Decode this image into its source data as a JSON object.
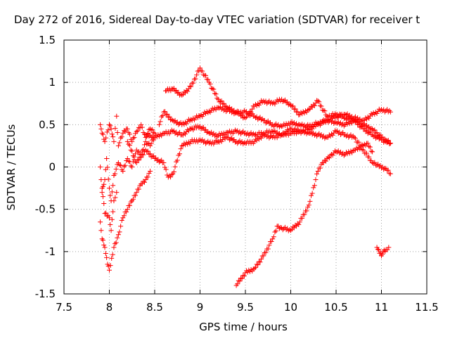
{
  "chart_data": {
    "type": "scatter",
    "title": "Day 272 of 2016, Sidereal Day-to-day VTEC variation (SDTVAR) for receiver t",
    "xlabel": "GPS time / hours",
    "ylabel": "SDTVAR / TECUs",
    "xlim": [
      7.5,
      11.5
    ],
    "ylim": [
      -1.5,
      1.5
    ],
    "x_ticks": [
      7.5,
      8,
      8.5,
      9,
      9.5,
      10,
      10.5,
      11,
      11.5
    ],
    "x_tick_labels": [
      "7.5",
      "8",
      "8.5",
      "9",
      "9.5",
      "10",
      "10.5",
      "11",
      "11.5"
    ],
    "y_ticks": [
      -1.5,
      -1,
      -0.5,
      0,
      0.5,
      1,
      1.5
    ],
    "y_tick_labels": [
      "-1.5",
      "-1",
      "-0.5",
      "0",
      "0.5",
      "1",
      "1.5"
    ],
    "grid": true,
    "marker": "+",
    "color": "#ff0000",
    "series": [
      {
        "x": [
          8.62,
          8.7,
          8.8,
          8.9,
          9.0,
          9.1,
          9.2,
          9.3,
          9.4,
          9.5,
          9.6,
          9.7,
          9.8,
          9.9,
          10.0,
          10.1,
          10.2,
          10.3,
          10.4,
          10.5,
          10.6,
          10.7,
          10.8,
          10.9,
          11.0,
          11.1
        ],
        "y": [
          0.9,
          0.92,
          0.85,
          0.95,
          1.17,
          1.0,
          0.8,
          0.7,
          0.65,
          0.58,
          0.72,
          0.78,
          0.75,
          0.8,
          0.73,
          0.62,
          0.68,
          0.78,
          0.6,
          0.62,
          0.58,
          0.55,
          0.5,
          0.45,
          0.35,
          0.28
        ]
      },
      {
        "x": [
          8.55,
          8.6,
          8.7,
          8.8,
          8.9,
          9.0,
          9.1,
          9.2,
          9.3,
          9.4,
          9.5,
          9.6,
          9.7,
          9.8,
          9.9,
          10.0,
          10.1,
          10.2,
          10.3,
          10.4,
          10.5,
          10.6,
          10.7,
          10.8,
          10.9,
          11.0,
          11.1
        ],
        "y": [
          0.5,
          0.65,
          0.55,
          0.5,
          0.56,
          0.6,
          0.66,
          0.7,
          0.67,
          0.64,
          0.65,
          0.6,
          0.55,
          0.5,
          0.48,
          0.52,
          0.5,
          0.48,
          0.52,
          0.55,
          0.6,
          0.62,
          0.58,
          0.55,
          0.62,
          0.68,
          0.65
        ]
      },
      {
        "x": [
          8.4,
          8.5,
          8.6,
          8.7,
          8.8,
          8.9,
          9.0,
          9.1,
          9.2,
          9.3,
          9.4,
          9.5,
          9.6,
          9.7,
          9.8,
          9.9,
          10.0,
          10.1,
          10.2,
          10.3,
          10.4,
          10.5,
          10.6,
          10.7,
          10.8,
          10.9,
          11.0,
          11.1
        ],
        "y": [
          0.38,
          0.35,
          0.4,
          0.42,
          0.38,
          0.45,
          0.48,
          0.4,
          0.37,
          0.41,
          0.42,
          0.4,
          0.38,
          0.4,
          0.42,
          0.38,
          0.4,
          0.42,
          0.45,
          0.5,
          0.55,
          0.52,
          0.5,
          0.55,
          0.45,
          0.38,
          0.32,
          0.28
        ]
      },
      {
        "x": [
          8.2,
          8.3,
          8.4,
          8.5,
          8.6,
          8.65,
          8.7,
          8.8,
          8.9,
          9.0,
          9.1,
          9.2,
          9.3,
          9.4,
          9.5,
          9.6,
          9.7,
          9.8,
          9.9,
          10.0,
          10.1,
          10.2,
          10.3,
          10.4,
          10.5,
          10.6,
          10.7,
          10.8,
          10.9,
          10.95,
          11.05,
          11.1
        ],
        "y": [
          0.3,
          0.05,
          0.2,
          0.1,
          0.05,
          -0.12,
          -0.08,
          0.25,
          0.3,
          0.32,
          0.28,
          0.3,
          0.35,
          0.3,
          0.28,
          0.3,
          0.38,
          0.35,
          0.38,
          0.45,
          0.42,
          0.4,
          0.38,
          0.35,
          0.42,
          0.38,
          0.35,
          0.2,
          0.05,
          0.02,
          -0.02,
          -0.08
        ]
      },
      {
        "x": [
          9.4,
          9.5,
          9.6,
          9.7,
          9.8,
          9.85,
          9.9,
          10.0,
          10.1,
          10.2,
          10.3,
          10.35,
          10.4,
          10.45,
          10.5,
          10.6,
          10.7,
          10.8,
          10.85,
          10.9
        ],
        "y": [
          -1.4,
          -1.25,
          -1.2,
          -1.05,
          -0.85,
          -0.7,
          -0.72,
          -0.75,
          -0.65,
          -0.45,
          -0.05,
          0.05,
          0.1,
          0.15,
          0.18,
          0.15,
          0.2,
          0.25,
          0.28,
          0.18
        ]
      },
      {
        "x": [
          10.95,
          10.98,
          11.0,
          11.02,
          11.05,
          11.08
        ],
        "y": [
          -0.95,
          -1.02,
          -1.05,
          -1.0,
          -0.98,
          -0.95
        ]
      },
      {
        "x": [
          7.9,
          7.92,
          7.95,
          8.0,
          8.02,
          8.05,
          8.08,
          8.1,
          8.15,
          8.2,
          8.25,
          8.3,
          8.35,
          8.4,
          8.45,
          8.5
        ],
        "y": [
          0.5,
          0.4,
          0.3,
          0.5,
          0.45,
          0.3,
          0.6,
          0.25,
          0.4,
          0.45,
          0.3,
          0.42,
          0.5,
          0.35,
          0.45,
          0.4
        ]
      },
      {
        "x": [
          7.9,
          7.92,
          7.95,
          7.97,
          8.0,
          8.02,
          8.05,
          8.1,
          8.15,
          8.2,
          8.25,
          8.3,
          8.35,
          8.4,
          8.45,
          8.5
        ],
        "y": [
          0.0,
          -0.3,
          -0.15,
          0.1,
          -0.25,
          -0.4,
          -0.1,
          0.05,
          -0.05,
          0.1,
          0.0,
          0.2,
          0.15,
          0.3,
          0.25,
          0.35
        ]
      },
      {
        "x": [
          7.9,
          7.92,
          7.95,
          7.98,
          8.0,
          8.05,
          8.1,
          8.15,
          8.2,
          8.25,
          8.3,
          8.35,
          8.4,
          8.45
        ],
        "y": [
          -0.65,
          -0.85,
          -0.95,
          -1.15,
          -1.22,
          -0.95,
          -0.8,
          -0.6,
          -0.5,
          -0.4,
          -0.3,
          -0.2,
          -0.15,
          -0.05
        ]
      },
      {
        "x": [
          7.92,
          7.95,
          8.0,
          8.02,
          8.05,
          8.08
        ],
        "y": [
          -0.25,
          -0.55,
          -0.6,
          -0.75,
          -0.4,
          -0.3
        ]
      }
    ]
  }
}
